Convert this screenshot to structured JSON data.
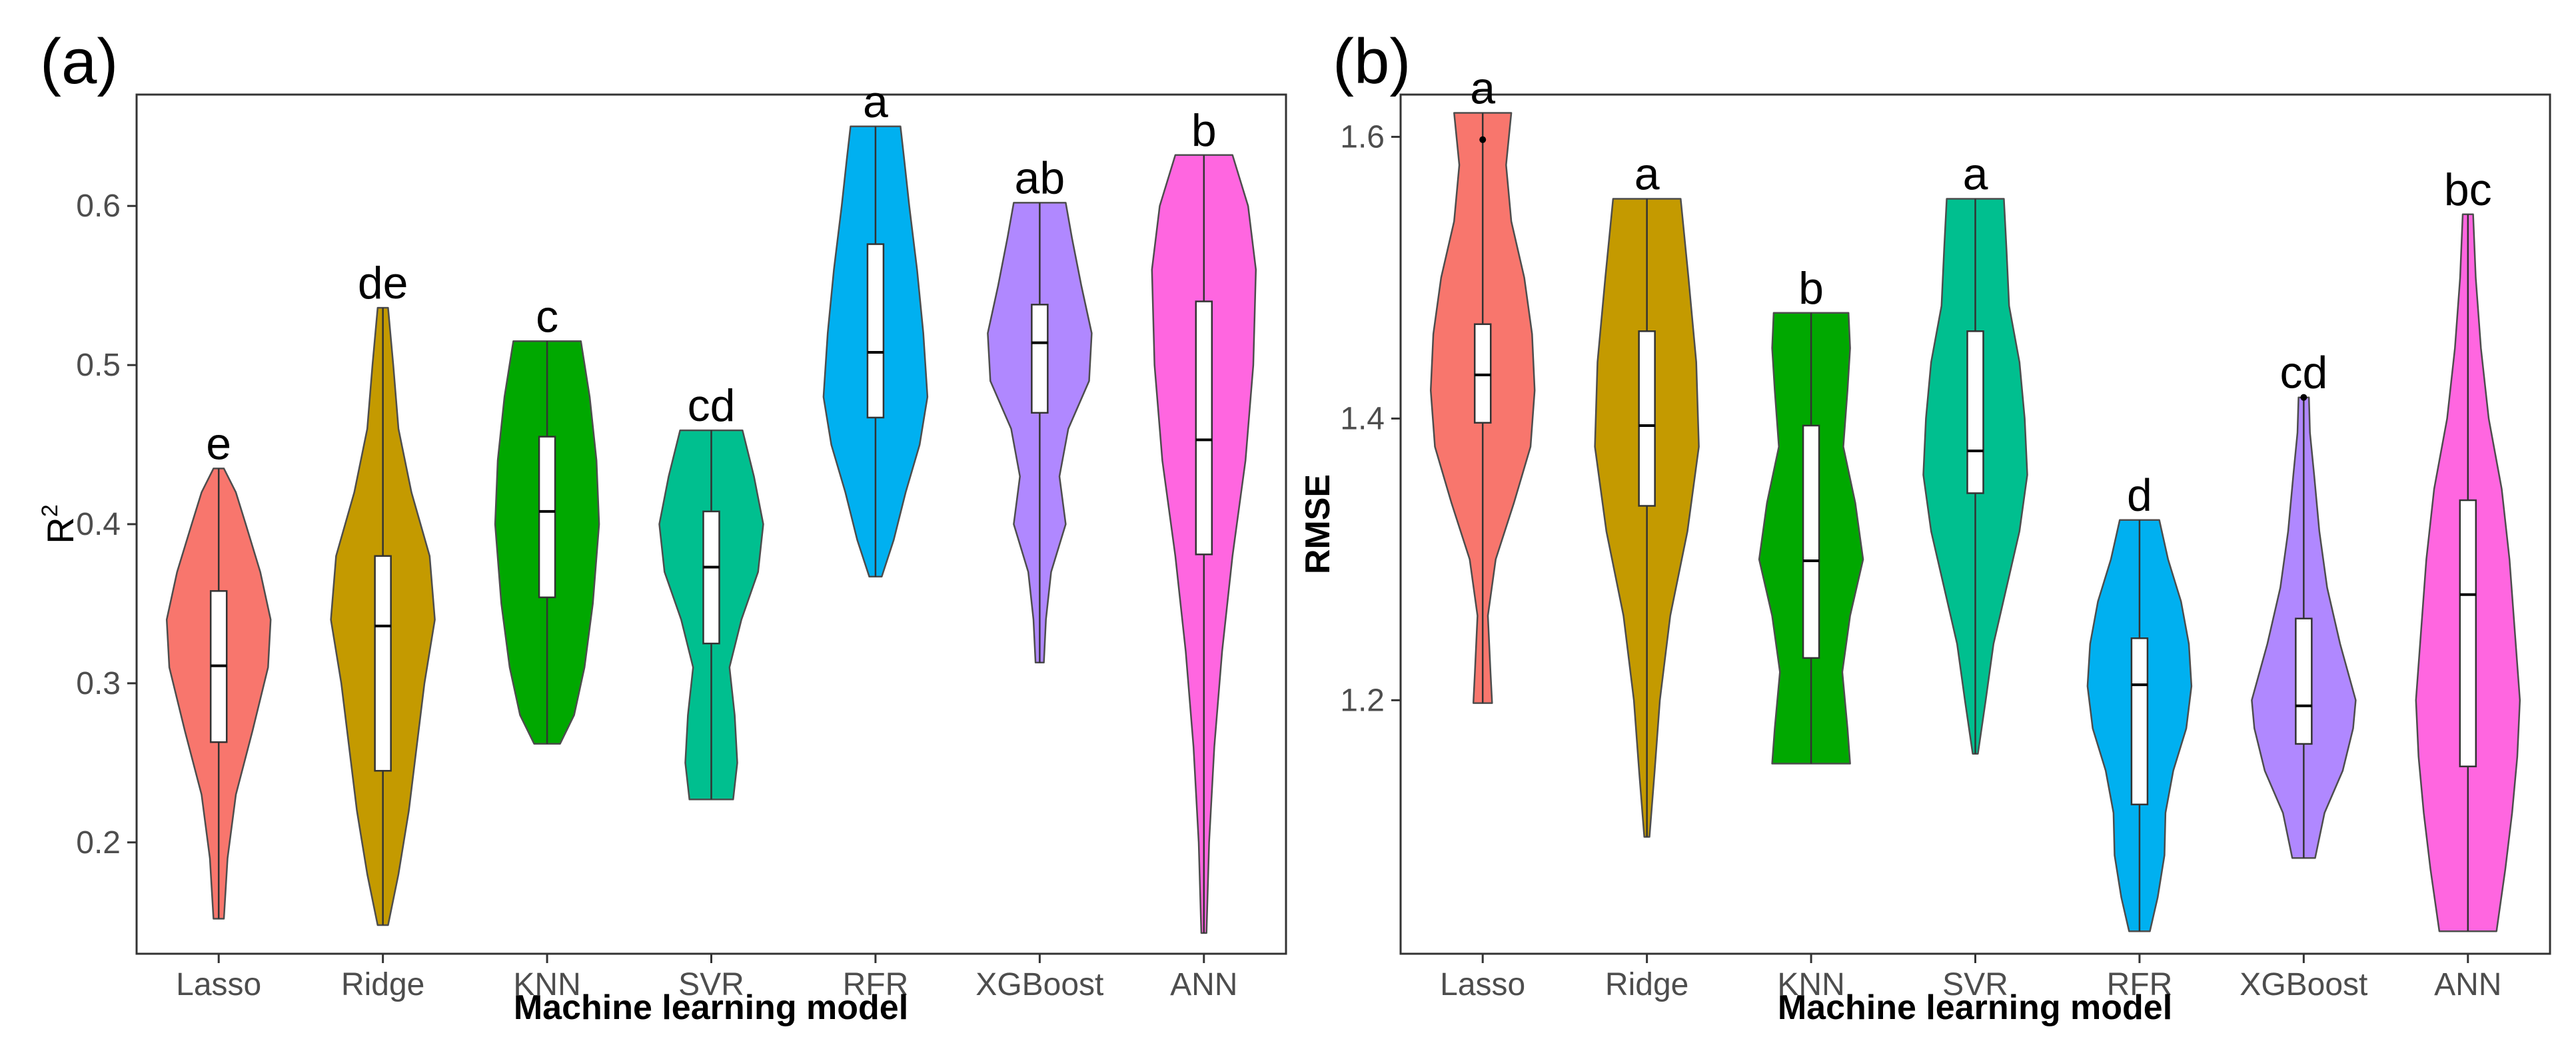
{
  "chart_data": [
    {
      "type": "violin",
      "panel_label": "(a)",
      "xlabel": "Machine learning model",
      "ylabel": "R",
      "ylabel_sup": "2",
      "ylim": [
        0.13,
        0.67
      ],
      "yticks": [
        0.2,
        0.3,
        0.4,
        0.5,
        0.6
      ],
      "ytick_labels": [
        "0.2",
        "0.3",
        "0.4",
        "0.5",
        "0.6"
      ],
      "grid": false,
      "categories": [
        "Lasso",
        "Ridge",
        "KNN",
        "SVR",
        "RFR",
        "XGBoost",
        "ANN"
      ],
      "colors": [
        "#F8766D",
        "#C49A00",
        "#00A800",
        "#00BF8F",
        "#00B0F0",
        "#B088FF",
        "#FF66E0"
      ],
      "series": [
        {
          "category": "Lasso",
          "min": 0.152,
          "q1": 0.263,
          "median": 0.311,
          "q3": 0.358,
          "max": 0.435,
          "label": "e",
          "density": [
            [
              0.152,
              0.1
            ],
            [
              0.19,
              0.17
            ],
            [
              0.23,
              0.33
            ],
            [
              0.27,
              0.65
            ],
            [
              0.31,
              0.95
            ],
            [
              0.34,
              1.0
            ],
            [
              0.37,
              0.8
            ],
            [
              0.4,
              0.52
            ],
            [
              0.42,
              0.33
            ],
            [
              0.435,
              0.1
            ]
          ]
        },
        {
          "category": "Ridge",
          "min": 0.148,
          "q1": 0.245,
          "median": 0.336,
          "q3": 0.38,
          "max": 0.536,
          "label": "de",
          "density": [
            [
              0.148,
              0.1
            ],
            [
              0.18,
              0.3
            ],
            [
              0.22,
              0.5
            ],
            [
              0.26,
              0.65
            ],
            [
              0.3,
              0.8
            ],
            [
              0.34,
              1.0
            ],
            [
              0.38,
              0.9
            ],
            [
              0.42,
              0.55
            ],
            [
              0.46,
              0.3
            ],
            [
              0.5,
              0.2
            ],
            [
              0.536,
              0.1
            ]
          ]
        },
        {
          "category": "KNN",
          "min": 0.262,
          "q1": 0.354,
          "median": 0.408,
          "q3": 0.455,
          "max": 0.515,
          "label": "c",
          "density": [
            [
              0.262,
              0.25
            ],
            [
              0.28,
              0.52
            ],
            [
              0.31,
              0.72
            ],
            [
              0.35,
              0.88
            ],
            [
              0.4,
              1.0
            ],
            [
              0.44,
              0.95
            ],
            [
              0.48,
              0.82
            ],
            [
              0.515,
              0.65
            ]
          ]
        },
        {
          "category": "SVR",
          "min": 0.227,
          "q1": 0.325,
          "median": 0.373,
          "q3": 0.408,
          "max": 0.459,
          "label": "cd",
          "density": [
            [
              0.227,
              0.42
            ],
            [
              0.25,
              0.5
            ],
            [
              0.28,
              0.45
            ],
            [
              0.31,
              0.35
            ],
            [
              0.34,
              0.58
            ],
            [
              0.37,
              0.9
            ],
            [
              0.4,
              1.0
            ],
            [
              0.43,
              0.82
            ],
            [
              0.459,
              0.6
            ]
          ]
        },
        {
          "category": "RFR",
          "min": 0.367,
          "q1": 0.467,
          "median": 0.508,
          "q3": 0.576,
          "max": 0.65,
          "label": "a",
          "density": [
            [
              0.367,
              0.12
            ],
            [
              0.39,
              0.35
            ],
            [
              0.42,
              0.58
            ],
            [
              0.45,
              0.85
            ],
            [
              0.48,
              1.0
            ],
            [
              0.52,
              0.92
            ],
            [
              0.56,
              0.8
            ],
            [
              0.6,
              0.65
            ],
            [
              0.63,
              0.55
            ],
            [
              0.65,
              0.48
            ]
          ]
        },
        {
          "category": "XGBoost",
          "min": 0.313,
          "q1": 0.47,
          "median": 0.514,
          "q3": 0.538,
          "max": 0.602,
          "label": "ab",
          "density": [
            [
              0.313,
              0.08
            ],
            [
              0.34,
              0.12
            ],
            [
              0.37,
              0.22
            ],
            [
              0.4,
              0.5
            ],
            [
              0.43,
              0.38
            ],
            [
              0.46,
              0.55
            ],
            [
              0.49,
              0.95
            ],
            [
              0.52,
              1.0
            ],
            [
              0.55,
              0.8
            ],
            [
              0.58,
              0.62
            ],
            [
              0.602,
              0.5
            ]
          ]
        },
        {
          "category": "ANN",
          "min": 0.143,
          "q1": 0.381,
          "median": 0.453,
          "q3": 0.54,
          "max": 0.632,
          "label": "b",
          "density": [
            [
              0.143,
              0.05
            ],
            [
              0.2,
              0.1
            ],
            [
              0.26,
              0.2
            ],
            [
              0.32,
              0.35
            ],
            [
              0.38,
              0.55
            ],
            [
              0.44,
              0.8
            ],
            [
              0.5,
              0.95
            ],
            [
              0.56,
              1.0
            ],
            [
              0.6,
              0.85
            ],
            [
              0.632,
              0.55
            ]
          ]
        }
      ]
    },
    {
      "type": "violin",
      "panel_label": "(b)",
      "xlabel": "Machine learning model",
      "ylabel": "RMSE",
      "ylim": [
        1.02,
        1.63
      ],
      "yticks": [
        1.2,
        1.4,
        1.6
      ],
      "ytick_labels": [
        "1.2",
        "1.4",
        "1.6"
      ],
      "grid": false,
      "categories": [
        "Lasso",
        "Ridge",
        "KNN",
        "SVR",
        "RFR",
        "XGBoost",
        "ANN"
      ],
      "colors": [
        "#F8766D",
        "#C49A00",
        "#00A800",
        "#00BF8F",
        "#00B0F0",
        "#B088FF",
        "#FF66E0"
      ],
      "series": [
        {
          "category": "Lasso",
          "min": 1.198,
          "q1": 1.397,
          "median": 1.431,
          "q3": 1.467,
          "max": 1.617,
          "outliers": [
            1.598
          ],
          "label": "a",
          "density": [
            [
              1.198,
              0.18
            ],
            [
              1.22,
              0.15
            ],
            [
              1.26,
              0.1
            ],
            [
              1.3,
              0.25
            ],
            [
              1.34,
              0.6
            ],
            [
              1.38,
              0.92
            ],
            [
              1.42,
              1.0
            ],
            [
              1.46,
              0.95
            ],
            [
              1.5,
              0.8
            ],
            [
              1.54,
              0.55
            ],
            [
              1.58,
              0.45
            ],
            [
              1.617,
              0.55
            ]
          ]
        },
        {
          "category": "Ridge",
          "min": 1.103,
          "q1": 1.338,
          "median": 1.395,
          "q3": 1.462,
          "max": 1.556,
          "label": "a",
          "density": [
            [
              1.103,
              0.05
            ],
            [
              1.15,
              0.15
            ],
            [
              1.2,
              0.25
            ],
            [
              1.26,
              0.45
            ],
            [
              1.32,
              0.78
            ],
            [
              1.38,
              1.0
            ],
            [
              1.44,
              0.95
            ],
            [
              1.5,
              0.8
            ],
            [
              1.556,
              0.65
            ]
          ]
        },
        {
          "category": "KNN",
          "min": 1.155,
          "q1": 1.23,
          "median": 1.299,
          "q3": 1.395,
          "max": 1.475,
          "label": "b",
          "density": [
            [
              1.155,
              0.75
            ],
            [
              1.18,
              0.7
            ],
            [
              1.22,
              0.6
            ],
            [
              1.26,
              0.75
            ],
            [
              1.3,
              1.0
            ],
            [
              1.34,
              0.85
            ],
            [
              1.38,
              0.62
            ],
            [
              1.42,
              0.7
            ],
            [
              1.45,
              0.75
            ],
            [
              1.475,
              0.72
            ]
          ]
        },
        {
          "category": "SVR",
          "min": 1.162,
          "q1": 1.347,
          "median": 1.377,
          "q3": 1.462,
          "max": 1.556,
          "label": "a",
          "density": [
            [
              1.162,
              0.05
            ],
            [
              1.2,
              0.2
            ],
            [
              1.24,
              0.35
            ],
            [
              1.28,
              0.6
            ],
            [
              1.32,
              0.85
            ],
            [
              1.36,
              1.0
            ],
            [
              1.4,
              0.95
            ],
            [
              1.44,
              0.85
            ],
            [
              1.48,
              0.65
            ],
            [
              1.52,
              0.6
            ],
            [
              1.556,
              0.55
            ]
          ]
        },
        {
          "category": "RFR",
          "min": 1.036,
          "q1": 1.126,
          "median": 1.211,
          "q3": 1.244,
          "max": 1.328,
          "label": "d",
          "density": [
            [
              1.036,
              0.2
            ],
            [
              1.06,
              0.35
            ],
            [
              1.09,
              0.48
            ],
            [
              1.12,
              0.5
            ],
            [
              1.15,
              0.65
            ],
            [
              1.18,
              0.9
            ],
            [
              1.21,
              1.0
            ],
            [
              1.24,
              0.95
            ],
            [
              1.27,
              0.8
            ],
            [
              1.3,
              0.55
            ],
            [
              1.328,
              0.38
            ]
          ]
        },
        {
          "category": "XGBoost",
          "min": 1.088,
          "q1": 1.169,
          "median": 1.196,
          "q3": 1.258,
          "max": 1.415,
          "outliers": [
            1.415
          ],
          "label": "cd",
          "density": [
            [
              1.088,
              0.22
            ],
            [
              1.12,
              0.4
            ],
            [
              1.15,
              0.75
            ],
            [
              1.18,
              0.95
            ],
            [
              1.2,
              1.0
            ],
            [
              1.24,
              0.7
            ],
            [
              1.28,
              0.45
            ],
            [
              1.32,
              0.3
            ],
            [
              1.36,
              0.2
            ],
            [
              1.39,
              0.12
            ],
            [
              1.415,
              0.1
            ]
          ]
        },
        {
          "category": "ANN",
          "min": 1.036,
          "q1": 1.153,
          "median": 1.275,
          "q3": 1.342,
          "max": 1.545,
          "label": "bc",
          "density": [
            [
              1.036,
              0.55
            ],
            [
              1.08,
              0.72
            ],
            [
              1.12,
              0.85
            ],
            [
              1.16,
              0.95
            ],
            [
              1.2,
              1.0
            ],
            [
              1.25,
              0.9
            ],
            [
              1.3,
              0.8
            ],
            [
              1.35,
              0.65
            ],
            [
              1.4,
              0.4
            ],
            [
              1.45,
              0.25
            ],
            [
              1.5,
              0.15
            ],
            [
              1.545,
              0.1
            ]
          ]
        }
      ]
    }
  ]
}
